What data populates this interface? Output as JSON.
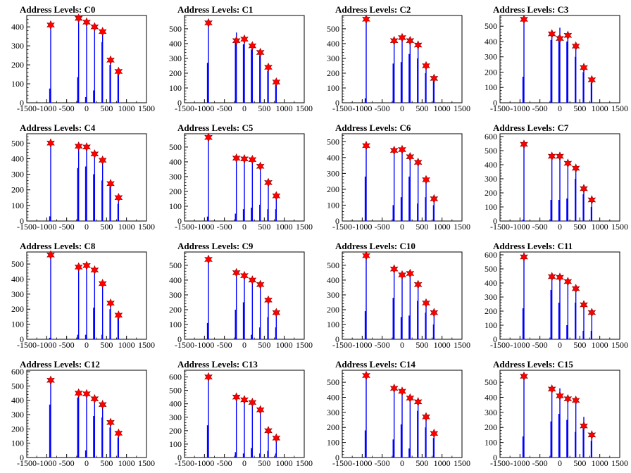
{
  "colors": {
    "spike": "#0000ff",
    "marker": "#ff0000",
    "frame": "#000000",
    "background": "#ffffff"
  },
  "chart_data": [
    {
      "type": "bar",
      "title": "Address Levels: C0",
      "xlim": [
        -1500,
        1500
      ],
      "ylim": [
        0,
        460
      ],
      "yticks": [
        0,
        100,
        200,
        300,
        400
      ],
      "xticks": [
        -1500,
        -1000,
        -500,
        0,
        500,
        1000,
        1500
      ],
      "x": [
        -900,
        -200,
        0,
        200,
        400,
        600,
        800
      ],
      "spike_values": [
        400,
        440,
        420,
        400,
        370,
        220,
        165
      ],
      "minor_bars": [
        [
          -920,
          75
        ],
        [
          -220,
          135
        ],
        [
          -20,
          30
        ],
        [
          180,
          65
        ],
        [
          390,
          320
        ],
        [
          590,
          200
        ],
        [
          790,
          160
        ]
      ],
      "marker_values": [
        410,
        445,
        425,
        400,
        375,
        225,
        165
      ]
    },
    {
      "type": "bar",
      "title": "Address Levels: C1",
      "xlim": [
        -1500,
        1500
      ],
      "ylim": [
        0,
        590
      ],
      "yticks": [
        0,
        100,
        200,
        300,
        400,
        500
      ],
      "xticks": [
        -1500,
        -1000,
        -500,
        0,
        500,
        1000,
        1500
      ],
      "x": [
        -900,
        -200,
        0,
        200,
        400,
        600,
        800
      ],
      "spike_values": [
        540,
        475,
        435,
        380,
        330,
        230,
        135
      ],
      "minor_bars": [
        [
          -920,
          270
        ],
        [
          -220,
          420
        ],
        [
          -20,
          395
        ],
        [
          180,
          360
        ],
        [
          390,
          320
        ],
        [
          590,
          215
        ],
        [
          790,
          120
        ]
      ],
      "marker_values": [
        540,
        420,
        430,
        385,
        340,
        240,
        140
      ]
    },
    {
      "type": "bar",
      "title": "Address Levels: C2",
      "xlim": [
        -1500,
        1500
      ],
      "ylim": [
        0,
        590
      ],
      "yticks": [
        0,
        100,
        200,
        300,
        400,
        500
      ],
      "xticks": [
        -1500,
        -1000,
        -500,
        0,
        500,
        1000,
        1500
      ],
      "x": [
        -900,
        -200,
        0,
        200,
        400,
        600,
        800
      ],
      "spike_values": [
        560,
        420,
        440,
        420,
        385,
        245,
        160
      ],
      "minor_bars": [
        [
          -920,
          30
        ],
        [
          -220,
          265
        ],
        [
          -20,
          275
        ],
        [
          180,
          330
        ],
        [
          390,
          300
        ],
        [
          590,
          200
        ],
        [
          790,
          150
        ]
      ],
      "marker_values": [
        565,
        420,
        440,
        420,
        390,
        250,
        165
      ]
    },
    {
      "type": "bar",
      "title": "Address Levels: C3",
      "xlim": [
        -1500,
        1500
      ],
      "ylim": [
        0,
        570
      ],
      "yticks": [
        0,
        100,
        200,
        300,
        400,
        500
      ],
      "xticks": [
        -1500,
        -1000,
        -500,
        0,
        500,
        1000,
        1500
      ],
      "x": [
        -900,
        -200,
        0,
        200,
        400,
        600,
        800
      ],
      "spike_values": [
        545,
        450,
        490,
        440,
        370,
        225,
        150
      ],
      "minor_bars": [
        [
          -920,
          170
        ],
        [
          -220,
          410
        ],
        [
          -20,
          440
        ],
        [
          180,
          400
        ],
        [
          390,
          300
        ],
        [
          590,
          200
        ],
        [
          790,
          130
        ]
      ],
      "marker_values": [
        545,
        450,
        420,
        440,
        370,
        230,
        150
      ]
    },
    {
      "type": "bar",
      "title": "Address Levels: C4",
      "xlim": [
        -1500,
        1500
      ],
      "ylim": [
        0,
        560
      ],
      "yticks": [
        0,
        100,
        200,
        300,
        400,
        500
      ],
      "xticks": [
        -1500,
        -1000,
        -500,
        0,
        500,
        1000,
        1500
      ],
      "x": [
        -900,
        -200,
        0,
        200,
        400,
        600,
        800
      ],
      "spike_values": [
        500,
        480,
        480,
        430,
        390,
        240,
        150
      ],
      "minor_bars": [
        [
          -920,
          30
        ],
        [
          -220,
          340
        ],
        [
          -20,
          350
        ],
        [
          180,
          300
        ],
        [
          390,
          260
        ],
        [
          590,
          220
        ],
        [
          790,
          110
        ]
      ],
      "marker_values": [
        500,
        480,
        475,
        430,
        390,
        240,
        150
      ]
    },
    {
      "type": "bar",
      "title": "Address Levels: C5",
      "xlim": [
        -1500,
        1500
      ],
      "ylim": [
        0,
        590
      ],
      "yticks": [
        0,
        100,
        200,
        300,
        400,
        500
      ],
      "xticks": [
        -1500,
        -1000,
        -500,
        0,
        500,
        1000,
        1500
      ],
      "x": [
        -900,
        -200,
        0,
        200,
        400,
        600,
        800
      ],
      "spike_values": [
        560,
        420,
        420,
        415,
        370,
        255,
        165
      ],
      "minor_bars": [
        [
          -920,
          30
        ],
        [
          -220,
          50
        ],
        [
          -20,
          80
        ],
        [
          180,
          90
        ],
        [
          390,
          110
        ],
        [
          590,
          80
        ],
        [
          790,
          80
        ]
      ],
      "marker_values": [
        565,
        425,
        420,
        415,
        370,
        260,
        170
      ]
    },
    {
      "type": "bar",
      "title": "Address Levels: C6",
      "xlim": [
        -1500,
        1500
      ],
      "ylim": [
        0,
        550
      ],
      "yticks": [
        0,
        100,
        200,
        300,
        400,
        500
      ],
      "xticks": [
        -1500,
        -1000,
        -500,
        0,
        500,
        1000,
        1500
      ],
      "x": [
        -900,
        -200,
        0,
        200,
        400,
        600,
        800
      ],
      "spike_values": [
        500,
        440,
        450,
        400,
        370,
        255,
        135
      ],
      "minor_bars": [
        [
          -920,
          280
        ],
        [
          -220,
          100
        ],
        [
          -20,
          150
        ],
        [
          180,
          280
        ],
        [
          390,
          110
        ],
        [
          590,
          150
        ],
        [
          790,
          100
        ]
      ],
      "marker_values": [
        475,
        445,
        450,
        405,
        370,
        260,
        140
      ]
    },
    {
      "type": "bar",
      "title": "Address Levels: C7",
      "xlim": [
        -1500,
        1500
      ],
      "ylim": [
        0,
        620
      ],
      "yticks": [
        0,
        100,
        200,
        300,
        400,
        500,
        600
      ],
      "xticks": [
        -1500,
        -1000,
        -500,
        0,
        500,
        1000,
        1500
      ],
      "x": [
        -900,
        -200,
        0,
        200,
        400,
        600,
        800
      ],
      "spike_values": [
        545,
        460,
        460,
        410,
        370,
        230,
        150
      ],
      "minor_bars": [
        [
          -920,
          10
        ],
        [
          -220,
          150
        ],
        [
          -20,
          150
        ],
        [
          180,
          160
        ],
        [
          390,
          300
        ],
        [
          590,
          190
        ],
        [
          790,
          100
        ]
      ],
      "marker_values": [
        545,
        460,
        460,
        410,
        375,
        230,
        150
      ]
    },
    {
      "type": "bar",
      "title": "Address Levels: C8",
      "xlim": [
        -1500,
        1500
      ],
      "ylim": [
        0,
        580
      ],
      "yticks": [
        0,
        100,
        200,
        300,
        400,
        500
      ],
      "xticks": [
        -1500,
        -1000,
        -500,
        0,
        500,
        1000,
        1500
      ],
      "x": [
        -900,
        -200,
        0,
        200,
        400,
        600,
        800
      ],
      "spike_values": [
        560,
        480,
        490,
        460,
        370,
        240,
        160
      ],
      "minor_bars": [
        [
          -920,
          10
        ],
        [
          -220,
          30
        ],
        [
          -20,
          30
        ],
        [
          180,
          210
        ],
        [
          390,
          30
        ],
        [
          590,
          200
        ],
        [
          790,
          150
        ]
      ],
      "marker_values": [
        560,
        480,
        490,
        460,
        370,
        240,
        160
      ]
    },
    {
      "type": "bar",
      "title": "Address Levels: C9",
      "xlim": [
        -1500,
        1500
      ],
      "ylim": [
        0,
        590
      ],
      "yticks": [
        0,
        100,
        200,
        300,
        400,
        500
      ],
      "xticks": [
        -1500,
        -1000,
        -500,
        0,
        500,
        1000,
        1500
      ],
      "x": [
        -900,
        -200,
        0,
        200,
        400,
        600,
        800
      ],
      "spike_values": [
        540,
        450,
        430,
        400,
        370,
        260,
        175
      ],
      "minor_bars": [
        [
          -920,
          110
        ],
        [
          -220,
          200
        ],
        [
          -20,
          250
        ],
        [
          180,
          30
        ],
        [
          390,
          80
        ],
        [
          590,
          150
        ],
        [
          790,
          80
        ]
      ],
      "marker_values": [
        540,
        450,
        430,
        400,
        370,
        265,
        180
      ]
    },
    {
      "type": "bar",
      "title": "Address Levels: C10",
      "xlim": [
        -1500,
        1500
      ],
      "ylim": [
        0,
        590
      ],
      "yticks": [
        0,
        100,
        200,
        300,
        400,
        500
      ],
      "xticks": [
        -1500,
        -1000,
        -500,
        0,
        500,
        1000,
        1500
      ],
      "x": [
        -900,
        -200,
        0,
        200,
        400,
        600,
        800
      ],
      "spike_values": [
        565,
        480,
        440,
        450,
        370,
        250,
        180
      ],
      "minor_bars": [
        [
          -920,
          190
        ],
        [
          -220,
          280
        ],
        [
          -20,
          150
        ],
        [
          180,
          160
        ],
        [
          390,
          260
        ],
        [
          590,
          180
        ],
        [
          790,
          100
        ]
      ],
      "marker_values": [
        565,
        475,
        435,
        445,
        370,
        245,
        180
      ]
    },
    {
      "type": "bar",
      "title": "Address Levels: C11",
      "xlim": [
        -1500,
        1500
      ],
      "ylim": [
        0,
        620
      ],
      "yticks": [
        0,
        100,
        200,
        300,
        400,
        500,
        600
      ],
      "xticks": [
        -1500,
        -1000,
        -500,
        0,
        500,
        1000,
        1500
      ],
      "x": [
        -900,
        -200,
        0,
        200,
        400,
        600,
        800
      ],
      "spike_values": [
        585,
        440,
        445,
        405,
        360,
        245,
        185
      ],
      "minor_bars": [
        [
          -920,
          220
        ],
        [
          -220,
          350
        ],
        [
          -20,
          260
        ],
        [
          180,
          100
        ],
        [
          390,
          260
        ],
        [
          590,
          60
        ],
        [
          790,
          60
        ]
      ],
      "marker_values": [
        585,
        445,
        440,
        410,
        360,
        245,
        190
      ]
    },
    {
      "type": "bar",
      "title": "Address Levels: C12",
      "xlim": [
        -1500,
        1500
      ],
      "ylim": [
        0,
        610
      ],
      "yticks": [
        0,
        100,
        200,
        300,
        400,
        500,
        600
      ],
      "xticks": [
        -1500,
        -1000,
        -500,
        0,
        500,
        1000,
        1500
      ],
      "x": [
        -900,
        -200,
        0,
        200,
        400,
        600,
        800
      ],
      "spike_values": [
        540,
        450,
        440,
        405,
        370,
        240,
        170
      ],
      "minor_bars": [
        [
          -920,
          370
        ],
        [
          -220,
          420
        ],
        [
          -20,
          50
        ],
        [
          180,
          290
        ],
        [
          390,
          280
        ],
        [
          590,
          210
        ],
        [
          790,
          140
        ]
      ],
      "marker_values": [
        540,
        450,
        445,
        410,
        370,
        245,
        170
      ]
    },
    {
      "type": "bar",
      "title": "Address Levels: C13",
      "xlim": [
        -1500,
        1500
      ],
      "ylim": [
        0,
        650
      ],
      "yticks": [
        0,
        100,
        200,
        300,
        400,
        500,
        600
      ],
      "xticks": [
        -1500,
        -1000,
        -500,
        0,
        500,
        1000,
        1500
      ],
      "x": [
        -900,
        -200,
        0,
        200,
        400,
        600,
        800
      ],
      "spike_values": [
        600,
        440,
        430,
        410,
        350,
        200,
        145
      ],
      "minor_bars": [
        [
          -920,
          240
        ],
        [
          -220,
          40
        ],
        [
          -20,
          30
        ],
        [
          180,
          70
        ],
        [
          390,
          30
        ],
        [
          590,
          50
        ],
        [
          790,
          30
        ]
      ],
      "marker_values": [
        600,
        450,
        430,
        410,
        355,
        200,
        145
      ]
    },
    {
      "type": "bar",
      "title": "Address Levels: C14",
      "xlim": [
        -1500,
        1500
      ],
      "ylim": [
        0,
        580
      ],
      "yticks": [
        0,
        100,
        200,
        300,
        400,
        500
      ],
      "xticks": [
        -1500,
        -1000,
        -500,
        0,
        500,
        1000,
        1500
      ],
      "x": [
        -900,
        -200,
        0,
        200,
        400,
        600,
        800
      ],
      "spike_values": [
        545,
        460,
        440,
        395,
        370,
        270,
        160
      ],
      "minor_bars": [
        [
          -920,
          180
        ],
        [
          -220,
          120
        ],
        [
          -20,
          220
        ],
        [
          180,
          60
        ],
        [
          390,
          310
        ],
        [
          590,
          200
        ],
        [
          790,
          130
        ]
      ],
      "marker_values": [
        545,
        460,
        440,
        395,
        370,
        270,
        160
      ]
    },
    {
      "type": "bar",
      "title": "Address Levels: C15",
      "xlim": [
        -1500,
        1500
      ],
      "ylim": [
        0,
        580
      ],
      "yticks": [
        0,
        100,
        200,
        300,
        400,
        500
      ],
      "xticks": [
        -1500,
        -1000,
        -500,
        0,
        500,
        1000,
        1500
      ],
      "x": [
        -900,
        -200,
        0,
        200,
        400,
        600,
        800
      ],
      "spike_values": [
        540,
        455,
        460,
        390,
        380,
        270,
        150
      ],
      "minor_bars": [
        [
          -920,
          140
        ],
        [
          -220,
          240
        ],
        [
          -20,
          290
        ],
        [
          180,
          250
        ],
        [
          390,
          170
        ],
        [
          590,
          220
        ],
        [
          790,
          110
        ]
      ],
      "marker_values": [
        540,
        455,
        410,
        390,
        380,
        210,
        150
      ]
    }
  ]
}
